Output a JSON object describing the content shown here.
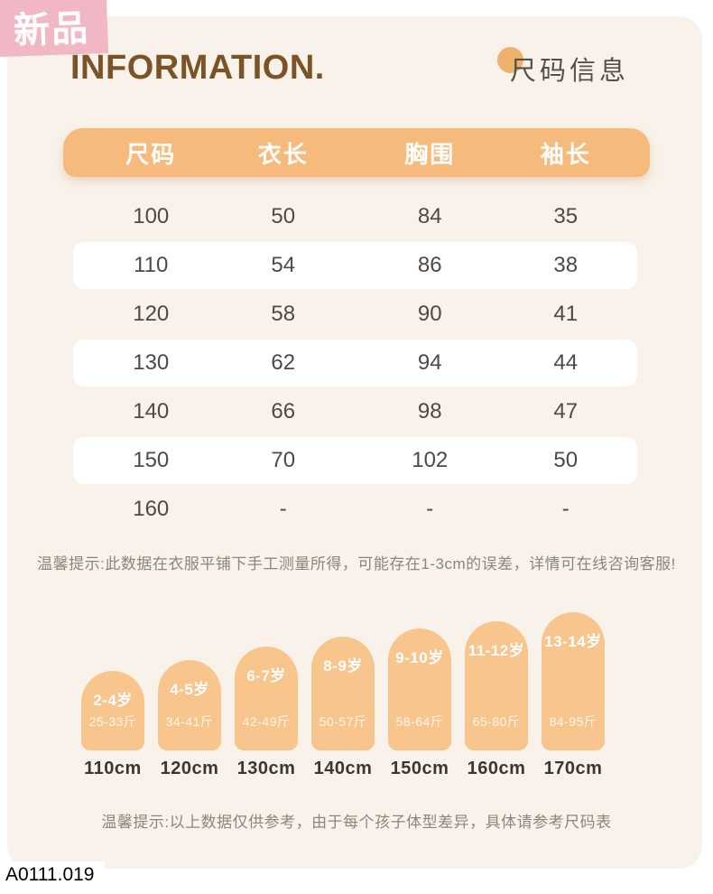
{
  "badge": {
    "label": "新品"
  },
  "header": {
    "title": "INFORMATION.",
    "subtitle": "尺码信息"
  },
  "size_table": {
    "columns": [
      "尺码",
      "衣长",
      "胸围",
      "袖长"
    ],
    "rows": [
      [
        "100",
        "50",
        "84",
        "35"
      ],
      [
        "110",
        "54",
        "86",
        "38"
      ],
      [
        "120",
        "58",
        "90",
        "41"
      ],
      [
        "130",
        "62",
        "94",
        "44"
      ],
      [
        "140",
        "66",
        "98",
        "47"
      ],
      [
        "150",
        "70",
        "102",
        "50"
      ],
      [
        "160",
        "-",
        "-",
        "-"
      ]
    ]
  },
  "notes": {
    "measurement": "温馨提示:此数据在衣服平铺下手工测量所得，可能存在1-3cm的误差，详情可在线咨询客服!",
    "reference": "温馨提示:以上数据仅供参考，由于每个孩子体型差异，具体请参考尺码表"
  },
  "age_chart": {
    "items": [
      {
        "age": "2-4岁",
        "weight": "25-33斤",
        "height": "110cm"
      },
      {
        "age": "4-5岁",
        "weight": "34-41斤",
        "height": "120cm"
      },
      {
        "age": "6-7岁",
        "weight": "42-49斤",
        "height": "130cm"
      },
      {
        "age": "8-9岁",
        "weight": "50-57斤",
        "height": "140cm"
      },
      {
        "age": "9-10岁",
        "weight": "58-64斤",
        "height": "150cm"
      },
      {
        "age": "11-12岁",
        "weight": "65-80斤",
        "height": "160cm"
      },
      {
        "age": "13-14岁",
        "weight": "84-95斤",
        "height": "170cm"
      }
    ]
  },
  "product_code": "A0111.019",
  "colors": {
    "card_background": "#F8F2EA",
    "table_header_orange": "#F6BA7C",
    "arch_orange": "#F8C58D",
    "badge_pink": "#F2B7C4",
    "title_brown": "#7C5326",
    "subtitle_dot_orange": "#EFB26D",
    "body_text": "#4E4944",
    "note_text": "#8C857B"
  }
}
